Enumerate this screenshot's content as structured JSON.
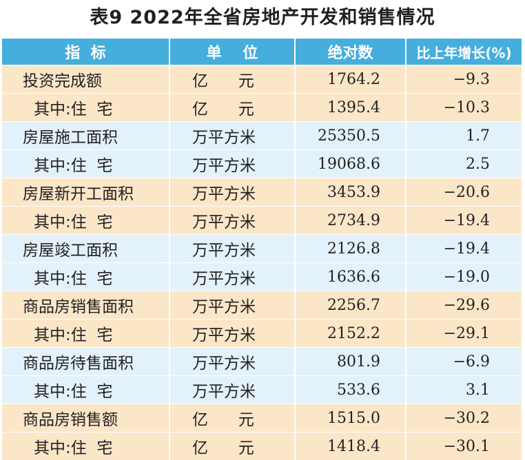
{
  "title": "表9  2022年全省房地产开发和销售情况",
  "table": {
    "headers": [
      "指  标",
      "单    位",
      "绝对数",
      "比上年增长(%)"
    ],
    "rows": [
      {
        "indicator": "投资完成额",
        "unit": "亿      元",
        "value": "1764.2",
        "growth": "−9.3",
        "sub": false,
        "group": "a"
      },
      {
        "indicator": "其中:住  宅",
        "unit": "亿      元",
        "value": "1395.4",
        "growth": "−10.3",
        "sub": true,
        "group": "a"
      },
      {
        "indicator": "房屋施工面积",
        "unit": "万平方米",
        "value": "25350.5",
        "growth": "1.7",
        "sub": false,
        "group": "b"
      },
      {
        "indicator": "其中:住  宅",
        "unit": "万平方米",
        "value": "19068.6",
        "growth": "2.5",
        "sub": true,
        "group": "b"
      },
      {
        "indicator": "房屋新开工面积",
        "unit": "万平方米",
        "value": "3453.9",
        "growth": "−20.6",
        "sub": false,
        "group": "a"
      },
      {
        "indicator": "其中:住  宅",
        "unit": "万平方米",
        "value": "2734.9",
        "growth": "−19.4",
        "sub": true,
        "group": "a"
      },
      {
        "indicator": "房屋竣工面积",
        "unit": "万平方米",
        "value": "2126.8",
        "growth": "−19.4",
        "sub": false,
        "group": "b"
      },
      {
        "indicator": "其中:住  宅",
        "unit": "万平方米",
        "value": "1636.6",
        "growth": "−19.0",
        "sub": true,
        "group": "b"
      },
      {
        "indicator": "商品房销售面积",
        "unit": "万平方米",
        "value": "2256.7",
        "growth": "−29.6",
        "sub": false,
        "group": "a"
      },
      {
        "indicator": "其中:住  宅",
        "unit": "万平方米",
        "value": "2152.2",
        "growth": "−29.1",
        "sub": true,
        "group": "a"
      },
      {
        "indicator": "商品房待售面积",
        "unit": "万平方米",
        "value": "801.9",
        "growth": "−6.9",
        "sub": false,
        "group": "b"
      },
      {
        "indicator": "其中:住  宅",
        "unit": "万平方米",
        "value": "533.6",
        "growth": "3.1",
        "sub": true,
        "group": "b"
      },
      {
        "indicator": "商品房销售额",
        "unit": "亿      元",
        "value": "1515.0",
        "growth": "−30.2",
        "sub": false,
        "group": "a"
      },
      {
        "indicator": "其中:住  宅",
        "unit": "亿      元",
        "value": "1418.4",
        "growth": "−30.1",
        "sub": true,
        "group": "a"
      }
    ]
  },
  "colors": {
    "header_bg": "#45aedd",
    "row_group_a": "#fbe6c8",
    "row_group_b": "#e3f2fa",
    "text": "#231f20"
  }
}
